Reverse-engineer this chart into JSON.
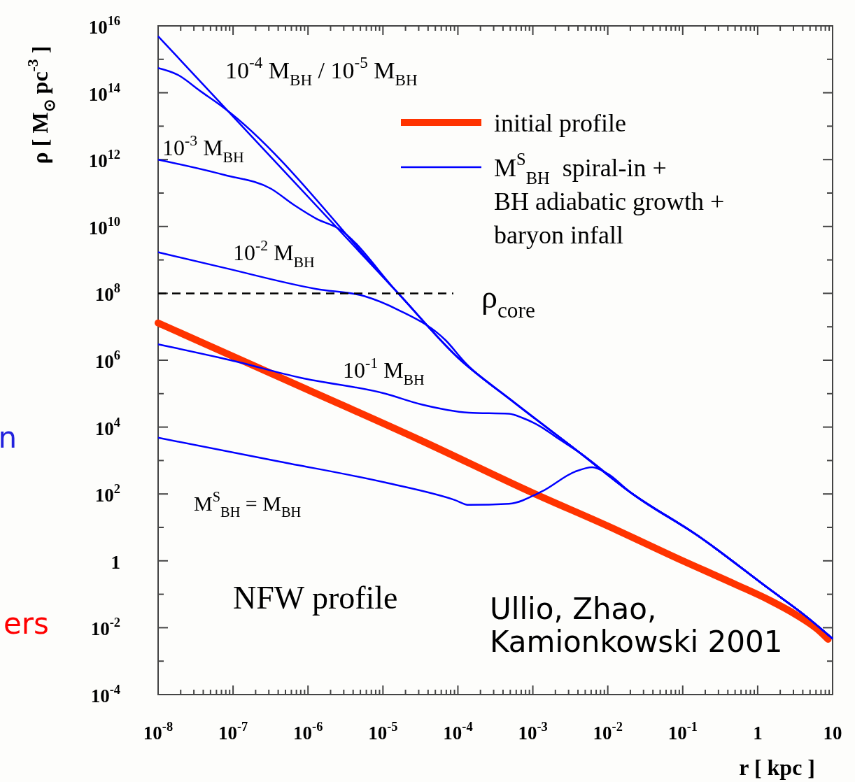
{
  "chart_data": {
    "type": "line",
    "xlabel": "r [ kpc ]",
    "ylabel": "ρ [ M$_{⊙}$ pc$^{-3}$ ]",
    "log": "xy",
    "legend": "top right",
    "xlim": [
      1e-08,
      10
    ],
    "ylim": [
      0.0001,
      1e+16
    ],
    "xticks": [
      {
        "value": 1e-08,
        "label": "10$^{-8}$"
      },
      {
        "value": 1e-07,
        "label": "10$^{-7}$"
      },
      {
        "value": 1e-06,
        "label": "10$^{-6}$"
      },
      {
        "value": 1e-05,
        "label": "10$^{-5}$"
      },
      {
        "value": 0.0001,
        "label": "10$^{-4}$"
      },
      {
        "value": 0.001,
        "label": "10$^{-3}$"
      },
      {
        "value": 0.01,
        "label": "10$^{-2}$"
      },
      {
        "value": 0.1,
        "label": "10$^{-1}$"
      },
      1,
      10,
      {
        "value": 2e-08,
        "label": null
      },
      {
        "value": 3e-08,
        "label": null
      },
      {
        "value": 4e-08,
        "label": null
      },
      {
        "value": 5e-08,
        "label": null
      },
      {
        "value": 6e-08,
        "label": null
      },
      {
        "value": 7e-08,
        "label": null
      },
      {
        "value": 8e-08,
        "label": null
      },
      {
        "value": 9e-08,
        "label": null
      },
      {
        "value": 2e-07,
        "label": null
      },
      {
        "value": 3e-07,
        "label": null
      },
      {
        "value": 4e-07,
        "label": null
      },
      {
        "value": 5e-07,
        "label": null
      },
      {
        "value": 6e-07,
        "label": null
      },
      {
        "value": 7e-07,
        "label": null
      },
      {
        "value": 8e-07,
        "label": null
      },
      {
        "value": 9e-07,
        "label": null
      },
      {
        "value": 2e-06,
        "label": null
      },
      {
        "value": 3e-06,
        "label": null
      },
      {
        "value": 4e-06,
        "label": null
      },
      {
        "value": 5e-06,
        "label": null
      },
      {
        "value": 6e-06,
        "label": null
      },
      {
        "value": 7e-06,
        "label": null
      },
      {
        "value": 8e-06,
        "label": null
      },
      {
        "value": 9e-06,
        "label": null
      },
      {
        "value": 2e-05,
        "label": null
      },
      {
        "value": 3e-05,
        "label": null
      },
      {
        "value": 4e-05,
        "label": null
      },
      {
        "value": 5e-05,
        "label": null
      },
      {
        "value": 6e-05,
        "label": null
      },
      {
        "value": 7e-05,
        "label": null
      },
      {
        "value": 8e-05,
        "label": null
      },
      {
        "value": 9e-05,
        "label": null
      },
      {
        "value": 0.0002,
        "label": null
      },
      {
        "value": 0.0003,
        "label": null
      },
      {
        "value": 0.0004,
        "label": null
      },
      {
        "value": 0.0005,
        "label": null
      },
      {
        "value": 0.0006,
        "label": null
      },
      {
        "value": 0.0007,
        "label": null
      },
      {
        "value": 0.0008,
        "label": null
      },
      {
        "value": 0.0009,
        "label": null
      },
      {
        "value": 0.002,
        "label": null
      },
      {
        "value": 0.003,
        "label": null
      },
      {
        "value": 0.004,
        "label": null
      },
      {
        "value": 0.005,
        "label": null
      },
      {
        "value": 0.006,
        "label": null
      },
      {
        "value": 0.007,
        "label": null
      },
      {
        "value": 0.008,
        "label": null
      },
      {
        "value": 0.009,
        "label": null
      },
      {
        "value": 0.02,
        "label": null
      },
      {
        "value": 0.03,
        "label": null
      },
      {
        "value": 0.04,
        "label": null
      },
      {
        "value": 0.05,
        "label": null
      },
      {
        "value": 0.06,
        "label": null
      },
      {
        "value": 0.07,
        "label": null
      },
      {
        "value": 0.08,
        "label": null
      },
      {
        "value": 0.09,
        "label": null
      },
      {
        "value": 0.2,
        "label": null
      },
      {
        "value": 0.3,
        "label": null
      },
      {
        "value": 0.4,
        "label": null
      },
      {
        "value": 0.5,
        "label": null
      },
      {
        "value": 0.6,
        "label": null
      },
      {
        "value": 0.7,
        "label": null
      },
      {
        "value": 0.8,
        "label": null
      },
      {
        "value": 0.9,
        "label": null
      },
      {
        "value": 2,
        "label": null
      },
      {
        "value": 3,
        "label": null
      },
      {
        "value": 4,
        "label": null
      },
      {
        "value": 5,
        "label": null
      },
      {
        "value": 6,
        "label": null
      },
      {
        "value": 7,
        "label": null
      },
      {
        "value": 8,
        "label": null
      },
      {
        "value": 9,
        "label": null
      }
    ],
    "yticks": [
      {
        "value": 1e+16,
        "label": "10$^{16}$"
      },
      {
        "value": 100000000000000.0,
        "label": "10$^{14}$"
      },
      {
        "value": 1000000000000.0,
        "label": "10$^{12}$"
      },
      {
        "value": 10000000000.0,
        "label": "10$^{10}$"
      },
      {
        "value": 100000000.0,
        "label": "10$^{8}$"
      },
      {
        "value": 1000000.0,
        "label": "10$^{6}$"
      },
      {
        "value": 10000.0,
        "label": "10$^{4}$"
      },
      {
        "value": 100,
        "label": "10$^{2}$"
      },
      1,
      {
        "value": 0.01,
        "label": "10$^{-2}$"
      },
      {
        "value": 0.0001,
        "label": "10$^{-4}$"
      },
      {
        "value": 1000000000000000.0,
        "label": null
      },
      {
        "value": 10000000000000.0,
        "label": null
      },
      {
        "value": 100000000000.0,
        "label": null
      },
      {
        "value": 1000000000.0,
        "label": null
      },
      {
        "value": 10000000.0,
        "label": null
      },
      {
        "value": 100000.0,
        "label": null
      },
      {
        "value": 1000.0,
        "label": null
      },
      {
        "value": 10,
        "label": null
      },
      {
        "value": 0.1,
        "label": null
      },
      {
        "value": 0.001,
        "label": null
      }
    ],
    "series": [
      {
        "name": "initial profile",
        "color": "#ff3300",
        "x": [
          1e-08,
          1e-06,
          3.2e-05,
          0.001,
          0.01,
          0.1,
          0.5,
          1.45,
          3.2,
          6.3,
          8.7
        ],
        "values": [
          13000000.0,
          130000.0,
          4000.0,
          107,
          11,
          1,
          0.2,
          0.066,
          0.025,
          0.0089,
          0.0045
        ]
      },
      {
        "name": "M$^{S}$$_{BH}$  spiral-in +\nBH adiabatic growth +\nbaryon infall",
        "color": "#0000ff",
        "x": [
          1e-08,
          1.6e-05,
          0.0001,
          0.00051,
          0.0044,
          0.0195,
          0.17,
          1.45,
          4.3,
          10
        ],
        "values": [
          4900000000000000.0,
          100000000.0,
          1200000.0,
          65000.0,
          1600.0,
          117,
          5.1,
          0.14,
          0.023,
          0.0047
        ]
      },
      {
        "color": "#0000ff",
        "x": [
          1e-08,
          1.8e-08,
          3.7e-08,
          7.6e-08,
          1.6e-05,
          0.0001,
          0.00051,
          0.0044,
          0.0195,
          0.17,
          1.45,
          4.3,
          10
        ],
        "values": [
          550000000000000.0,
          350000000000000.0,
          110000000000000.0,
          35000000000000.0,
          100000000.0,
          1200000.0,
          65000.0,
          1600.0,
          117,
          5.1,
          0.14,
          0.023,
          0.0047
        ]
      },
      {
        "color": "#0000ff",
        "x": [
          1e-08,
          7.6e-08,
          3.2e-07,
          6.5e-07,
          1.3e-06,
          2.5e-06,
          1.6e-05,
          0.0001,
          0.00051,
          0.0044,
          0.0195,
          0.17,
          1.45,
          4.3,
          10
        ],
        "values": [
          1000000000000.0,
          350000000000.0,
          135000000000.0,
          44000000000.0,
          17000000000.0,
          8900000000.0,
          100000000.0,
          1200000.0,
          65000.0,
          1600.0,
          117,
          5.1,
          0.14,
          0.023,
          0.0047
        ]
      },
      {
        "color": "#0000ff",
        "x": [
          1e-08,
          7.6e-08,
          1.3e-06,
          5.6e-06,
          1.6e-05,
          6.9e-05,
          0.000126,
          0.00051,
          0.0044,
          0.0195,
          0.17,
          1.45,
          4.3,
          10
        ],
        "values": [
          1700000000.0,
          580000000.0,
          135000000.0,
          83000000.0,
          32000000.0,
          3900000.0,
          830000.0,
          65000.0,
          1600.0,
          117,
          5.1,
          0.14,
          0.023,
          0.0047
        ]
      },
      {
        "color": "#0000ff",
        "x": [
          1e-08,
          9.3e-08,
          7.9e-07,
          1.07e-05,
          3.2e-05,
          0.00014,
          0.00048,
          0.00072,
          0.0013,
          0.002,
          0.0044,
          0.0195,
          0.17,
          1.45,
          4.3,
          10
        ],
        "values": [
          3000000.0,
          1000000.0,
          300000.0,
          100000.0,
          48000.0,
          27000.0,
          25000.0,
          19000.0,
          10000.0,
          5200.0,
          1600.0,
          117,
          5.1,
          0.14,
          0.023,
          0.0047
        ]
      },
      {
        "color": "#0000ff",
        "x": [
          1e-08,
          4.2e-07,
          1.07e-05,
          9.1e-05,
          0.00014,
          0.00048,
          0.0013,
          0.0037,
          0.0062,
          0.01,
          0.0195,
          0.17,
          1.45,
          4.3,
          10
        ],
        "values": [
          4800.0,
          930,
          220,
          66,
          47,
          51,
          117,
          470,
          630,
          400,
          117,
          5.1,
          0.14,
          0.023,
          0.0047
        ]
      },
      {
        "color": "#000000",
        "line_style": "dashed",
        "x": [
          1e-08,
          8.7e-05
        ],
        "values": [
          100000000.0,
          100000000.0
        ]
      }
    ],
    "annotations": [
      "10$^{-4}$ M$_{BH}$ / 10$^{-5}$ M$_{BH}$",
      "10$^{-3}$ M$_{BH}$",
      "10$^{-2}$ M$_{BH}$",
      "ρ$_{core}$",
      "10$^{-1}$ M$_{BH}$",
      "M$^{S}$$_{BH}$ = M$_{BH}$",
      "NFW profile",
      "Ullio, Zhao,\nKamionkowski 2001",
      "n",
      "ers"
    ]
  }
}
